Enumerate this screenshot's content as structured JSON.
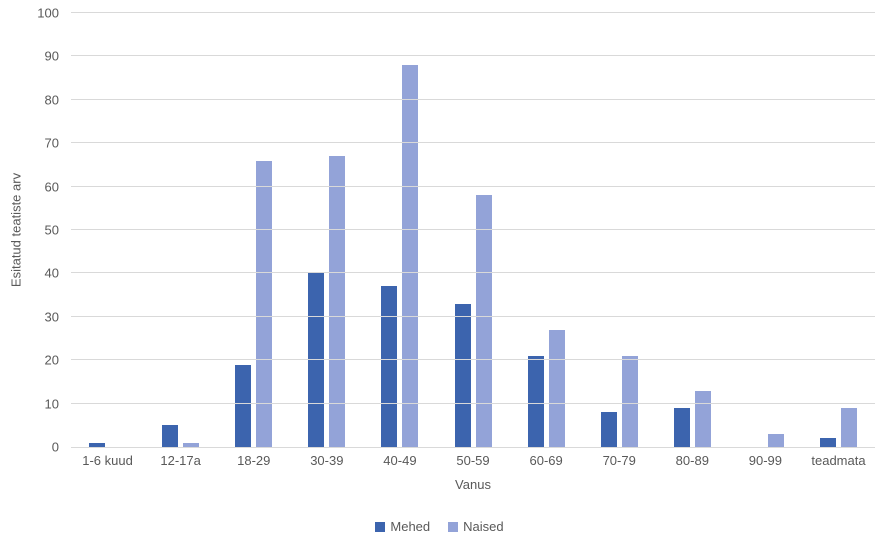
{
  "chart_data": {
    "type": "bar",
    "title": "",
    "xlabel": "Vanus",
    "ylabel": "Esitatud teatiste arv",
    "ylim": [
      0,
      100
    ],
    "ytick_step": 10,
    "grid": true,
    "legend_position": "bottom",
    "categories": [
      "1-6 kuud",
      "12-17a",
      "18-29",
      "30-39",
      "40-49",
      "50-59",
      "60-69",
      "70-79",
      "80-89",
      "90-99",
      "teadmata"
    ],
    "series": [
      {
        "name": "Mehed",
        "color": "#3c64ae",
        "values": [
          1,
          5,
          19,
          40,
          37,
          33,
          21,
          8,
          9,
          0,
          2
        ]
      },
      {
        "name": "Naised",
        "color": "#93a3d8",
        "values": [
          0,
          1,
          66,
          67,
          88,
          58,
          27,
          21,
          13,
          3,
          9
        ]
      }
    ]
  },
  "colors": {
    "grid": "#d9d9d9",
    "axis": "#d9d9d9",
    "text": "#595959",
    "background": "#ffffff"
  }
}
